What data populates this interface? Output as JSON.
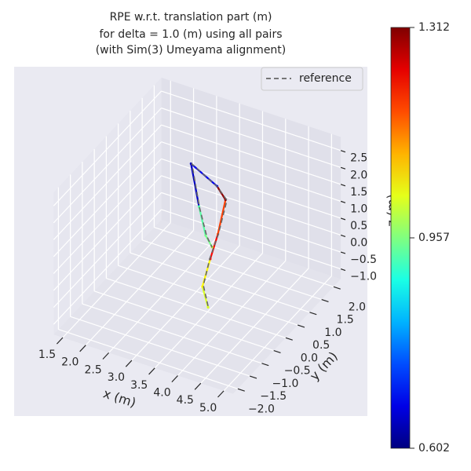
{
  "chart_data": {
    "type": "line3d",
    "title": [
      "RPE w.r.t. translation part (m)",
      "for delta = 1.0 (m) using all pairs",
      "(with Sim(3) Umeyama alignment)"
    ],
    "x_label": "x (m)",
    "y_label": "y (m)",
    "z_label": "z (m)",
    "xlim": [
      1.3,
      5.2
    ],
    "ylim": [
      -2.2,
      2.3
    ],
    "zlim": [
      -1.3,
      2.9
    ],
    "xticks": [
      {
        "value": 1.5,
        "label": "1.5"
      },
      {
        "value": 2.0,
        "label": "2.0"
      },
      {
        "value": 2.5,
        "label": "2.5"
      },
      {
        "value": 3.0,
        "label": "3.0"
      },
      {
        "value": 3.5,
        "label": "3.5"
      },
      {
        "value": 4.0,
        "label": "4.0"
      },
      {
        "value": 4.5,
        "label": "4.5"
      },
      {
        "value": 5.0,
        "label": "5.0"
      }
    ],
    "yticks": [
      {
        "value": -2.0,
        "label": "−2.0"
      },
      {
        "value": -1.5,
        "label": "−1.5"
      },
      {
        "value": -1.0,
        "label": "−1.0"
      },
      {
        "value": -0.5,
        "label": "−0.5"
      },
      {
        "value": 0.0,
        "label": "0.0"
      },
      {
        "value": 0.5,
        "label": "0.5"
      },
      {
        "value": 1.0,
        "label": "1.0"
      },
      {
        "value": 1.5,
        "label": "1.5"
      },
      {
        "value": 2.0,
        "label": "2.0"
      }
    ],
    "zticks": [
      {
        "value": -1.0,
        "label": "−1.0"
      },
      {
        "value": -0.5,
        "label": "−0.5"
      },
      {
        "value": 0.0,
        "label": "0.0"
      },
      {
        "value": 0.5,
        "label": "0.5"
      },
      {
        "value": 1.0,
        "label": "1.0"
      },
      {
        "value": 1.5,
        "label": "1.5"
      },
      {
        "value": 2.0,
        "label": "2.0"
      },
      {
        "value": 2.5,
        "label": "2.5"
      }
    ],
    "grid": true,
    "legend": "upper right",
    "series": [
      {
        "name": "reference",
        "color": "#666666",
        "dashed": true,
        "x": [
          3.45,
          3.4,
          3.55,
          3.72,
          3.86,
          3.64,
          3.1,
          3.3,
          3.47,
          3.6
        ],
        "y": [
          0.12,
          0.02,
          0.0,
          0.03,
          0.12,
          0.15,
          0.12,
          0.05,
          0.02,
          0.0
        ],
        "z": [
          -1.24,
          -0.58,
          0.3,
          1.07,
          2.07,
          2.34,
          2.8,
          1.66,
          0.92,
          0.65
        ]
      }
    ],
    "trajectory": {
      "colormap": "jet",
      "x": [
        3.46,
        3.39,
        3.56,
        3.7,
        3.84,
        3.63,
        3.09,
        3.29,
        3.46,
        3.6
      ],
      "y": [
        0.1,
        0.0,
        0.0,
        0.05,
        0.1,
        0.15,
        0.1,
        0.05,
        0.0,
        0.0
      ],
      "z": [
        -1.26,
        -0.6,
        0.29,
        1.05,
        2.09,
        2.36,
        2.82,
        1.68,
        0.94,
        0.66
      ],
      "values": [
        1.02,
        1.05,
        1.22,
        1.18,
        1.3,
        0.68,
        0.65,
        0.93,
        0.95,
        1.0
      ]
    },
    "colorbar": {
      "lim": [
        0.602,
        1.312
      ],
      "ticks": [
        {
          "value": 0.602,
          "label": "0.602"
        },
        {
          "value": 0.957,
          "label": "0.957"
        },
        {
          "value": 1.312,
          "label": "1.312"
        }
      ]
    }
  }
}
